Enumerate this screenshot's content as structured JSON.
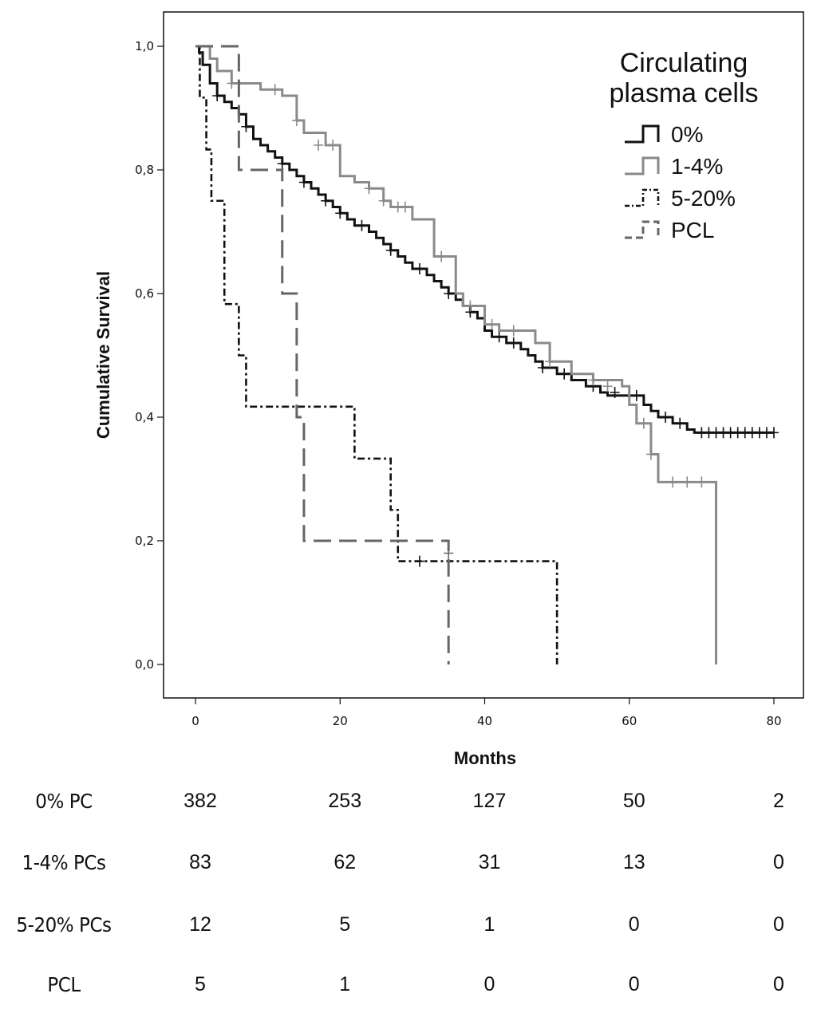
{
  "chart_data": {
    "type": "line",
    "subtype": "kaplan-meier",
    "ylabel": "Cumulative Survival",
    "xlabel": "Months",
    "xlim": [
      0,
      80
    ],
    "ylim": [
      0,
      1
    ],
    "x_ticks": [
      0,
      20,
      40,
      60,
      80
    ],
    "x_tick_labels": [
      "0",
      "20",
      "40",
      "60",
      "80"
    ],
    "y_ticks": [
      0,
      0.2,
      0.4,
      0.6,
      0.8,
      1.0
    ],
    "y_tick_labels": [
      "0,0",
      "0,2",
      "0,4",
      "0,6",
      "0,8",
      "1,0"
    ],
    "legend": {
      "title_lines": [
        "Circulating",
        "plasma cells"
      ],
      "placement": "top-right"
    },
    "series": [
      {
        "name": "0%",
        "color": "#111111",
        "dash": "solid",
        "steps": [
          [
            0,
            1.0
          ],
          [
            0.5,
            0.99
          ],
          [
            1,
            0.97
          ],
          [
            2,
            0.94
          ],
          [
            3,
            0.92
          ],
          [
            4,
            0.91
          ],
          [
            5,
            0.9
          ],
          [
            6,
            0.89
          ],
          [
            7,
            0.87
          ],
          [
            8,
            0.85
          ],
          [
            9,
            0.84
          ],
          [
            10,
            0.83
          ],
          [
            11,
            0.82
          ],
          [
            12,
            0.81
          ],
          [
            13,
            0.8
          ],
          [
            14,
            0.79
          ],
          [
            15,
            0.78
          ],
          [
            16,
            0.77
          ],
          [
            17,
            0.76
          ],
          [
            18,
            0.75
          ],
          [
            19,
            0.74
          ],
          [
            20,
            0.73
          ],
          [
            21,
            0.72
          ],
          [
            22,
            0.71
          ],
          [
            24,
            0.7
          ],
          [
            25,
            0.69
          ],
          [
            26,
            0.68
          ],
          [
            27,
            0.67
          ],
          [
            28,
            0.66
          ],
          [
            29,
            0.65
          ],
          [
            30,
            0.64
          ],
          [
            32,
            0.63
          ],
          [
            33,
            0.62
          ],
          [
            34,
            0.61
          ],
          [
            35,
            0.6
          ],
          [
            36,
            0.59
          ],
          [
            37,
            0.58
          ],
          [
            38,
            0.57
          ],
          [
            39,
            0.56
          ],
          [
            40,
            0.54
          ],
          [
            41,
            0.53
          ],
          [
            43,
            0.52
          ],
          [
            45,
            0.51
          ],
          [
            46,
            0.5
          ],
          [
            47,
            0.49
          ],
          [
            48,
            0.48
          ],
          [
            50,
            0.47
          ],
          [
            52,
            0.46
          ],
          [
            54,
            0.45
          ],
          [
            56,
            0.44
          ],
          [
            57,
            0.435
          ],
          [
            62,
            0.42
          ],
          [
            63,
            0.41
          ],
          [
            64,
            0.4
          ],
          [
            66,
            0.39
          ],
          [
            68,
            0.38
          ],
          [
            69,
            0.375
          ]
        ],
        "end_x": 80,
        "censors": [
          [
            3,
            0.92
          ],
          [
            7,
            0.87
          ],
          [
            12,
            0.81
          ],
          [
            15,
            0.78
          ],
          [
            18,
            0.75
          ],
          [
            20,
            0.73
          ],
          [
            23,
            0.71
          ],
          [
            27,
            0.67
          ],
          [
            31,
            0.64
          ],
          [
            35,
            0.6
          ],
          [
            38,
            0.57
          ],
          [
            42,
            0.53
          ],
          [
            44,
            0.52
          ],
          [
            48,
            0.48
          ],
          [
            51,
            0.47
          ],
          [
            55,
            0.45
          ],
          [
            58,
            0.44
          ],
          [
            60,
            0.435
          ],
          [
            61,
            0.435
          ],
          [
            65,
            0.4
          ],
          [
            67,
            0.39
          ],
          [
            70,
            0.375
          ],
          [
            71,
            0.375
          ],
          [
            72,
            0.375
          ],
          [
            73,
            0.375
          ],
          [
            74,
            0.375
          ],
          [
            75,
            0.375
          ],
          [
            76,
            0.375
          ],
          [
            77,
            0.375
          ],
          [
            78,
            0.375
          ],
          [
            79,
            0.375
          ],
          [
            80,
            0.375
          ]
        ]
      },
      {
        "name": "1-4%",
        "color": "#8a8a8a",
        "dash": "solid",
        "steps": [
          [
            0,
            1.0
          ],
          [
            2,
            0.98
          ],
          [
            3,
            0.96
          ],
          [
            5,
            0.94
          ],
          [
            9,
            0.93
          ],
          [
            12,
            0.92
          ],
          [
            14,
            0.88
          ],
          [
            15,
            0.86
          ],
          [
            18,
            0.84
          ],
          [
            20,
            0.79
          ],
          [
            22,
            0.78
          ],
          [
            24,
            0.77
          ],
          [
            26,
            0.75
          ],
          [
            27,
            0.74
          ],
          [
            30,
            0.72
          ],
          [
            33,
            0.66
          ],
          [
            36,
            0.6
          ],
          [
            37,
            0.58
          ],
          [
            40,
            0.55
          ],
          [
            42,
            0.54
          ],
          [
            47,
            0.52
          ],
          [
            49,
            0.49
          ],
          [
            52,
            0.47
          ],
          [
            55,
            0.46
          ],
          [
            59,
            0.45
          ],
          [
            60,
            0.42
          ],
          [
            61,
            0.39
          ],
          [
            63,
            0.34
          ],
          [
            64,
            0.295
          ],
          [
            72,
            0.0
          ]
        ],
        "end_x": 72,
        "censors": [
          [
            5,
            0.94
          ],
          [
            11,
            0.93
          ],
          [
            14,
            0.88
          ],
          [
            17,
            0.84
          ],
          [
            19,
            0.84
          ],
          [
            24,
            0.77
          ],
          [
            26,
            0.75
          ],
          [
            28,
            0.74
          ],
          [
            29,
            0.74
          ],
          [
            34,
            0.66
          ],
          [
            38,
            0.58
          ],
          [
            41,
            0.55
          ],
          [
            44,
            0.54
          ],
          [
            49,
            0.49
          ],
          [
            55,
            0.46
          ],
          [
            57,
            0.45
          ],
          [
            62,
            0.39
          ],
          [
            63,
            0.34
          ],
          [
            66,
            0.295
          ],
          [
            68,
            0.295
          ],
          [
            70,
            0.295
          ]
        ]
      },
      {
        "name": "5-20%",
        "color": "#111111",
        "dash": "dashdot",
        "steps": [
          [
            0,
            1.0
          ],
          [
            0.6,
            0.917
          ],
          [
            1.5,
            0.833
          ],
          [
            2.2,
            0.75
          ],
          [
            4,
            0.583
          ],
          [
            6,
            0.5
          ],
          [
            7,
            0.417
          ],
          [
            22,
            0.333
          ],
          [
            27,
            0.25
          ],
          [
            28,
            0.167
          ],
          [
            50,
            0.0
          ]
        ],
        "end_x": 50,
        "censors": [
          [
            31,
            0.167
          ]
        ]
      },
      {
        "name": "PCL",
        "color": "#666666",
        "dash": "dashed",
        "steps": [
          [
            0,
            1.0
          ],
          [
            6,
            0.8
          ],
          [
            12,
            0.6
          ],
          [
            14,
            0.4
          ],
          [
            15,
            0.2
          ],
          [
            35,
            0.0
          ]
        ],
        "end_x": 35,
        "censors": [
          [
            35,
            0.18
          ]
        ]
      }
    ],
    "risk_table": {
      "time_points": [
        0,
        20,
        40,
        60,
        80
      ],
      "rows": [
        {
          "label": "0% PC",
          "values": [
            "382",
            "253",
            "127",
            "50",
            "2"
          ]
        },
        {
          "label": "1-4% PCs",
          "values": [
            "83",
            "62",
            "31",
            "13",
            "0"
          ]
        },
        {
          "label": "5-20% PCs",
          "values": [
            "12",
            "5",
            "1",
            "0",
            "0"
          ]
        },
        {
          "label": "PCL",
          "values": [
            "5",
            "1",
            "0",
            "0",
            "0"
          ]
        }
      ]
    }
  }
}
